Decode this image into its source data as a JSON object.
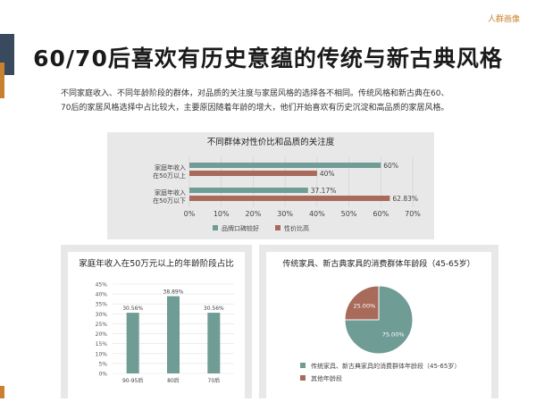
{
  "header": {
    "tag": "人群画像"
  },
  "page": {
    "title": "60/70后喜欢有历史意蕴的传统与新古典风格",
    "intro_line1": "不同家庭收入、不同年龄阶段的群体，对品质的关注度与家居风格的选择各不相同。传统风格和新古典在60、",
    "intro_line2": "70后的家居风格选择中占比较大，主要原因随着年龄的增大，他们开始喜欢有历史沉淀和高品质的家居风格。"
  },
  "colors": {
    "teal": "#6f9c95",
    "brown": "#a86a5a",
    "accent": "#c9812f",
    "dark": "#3a4a5e"
  },
  "chart_data": [
    {
      "type": "bar",
      "orientation": "horizontal",
      "title": "不同群体对性价比和品质的关注度",
      "categories": [
        "家庭年收入在50万以上",
        "家庭年收入在50万以下"
      ],
      "category_lines": [
        [
          "家庭年收入",
          "在50万以上"
        ],
        [
          "家庭年收入",
          "在50万以下"
        ]
      ],
      "series": [
        {
          "name": "品牌口碑较好",
          "values": [
            60,
            37.17
          ],
          "labels": [
            "60%",
            "37.17%"
          ],
          "color": "#6f9c95"
        },
        {
          "name": "性价比高",
          "values": [
            40,
            62.83
          ],
          "labels": [
            "40%",
            "62.83%"
          ],
          "color": "#a86a5a"
        }
      ],
      "xlim": [
        0,
        70
      ],
      "xticks": [
        "0%",
        "10%",
        "20%",
        "30%",
        "40%",
        "50%",
        "60%",
        "70%"
      ],
      "legend": "bottom",
      "grid": true
    },
    {
      "type": "bar",
      "title": "家庭年收入在50万元以上的年龄阶段占比",
      "categories": [
        "90-95后",
        "80后",
        "70后"
      ],
      "values": [
        30.56,
        38.89,
        30.56
      ],
      "labels": [
        "30.56%",
        "38.89%",
        "30.56%"
      ],
      "ylim": [
        0,
        45
      ],
      "yticks": [
        "0%",
        "5%",
        "10%",
        "15%",
        "20%",
        "25%",
        "30%",
        "35%",
        "40%",
        "45%"
      ],
      "color": "#6f9c95",
      "grid": true
    },
    {
      "type": "pie",
      "title": "传统家具、新古典家具的消费群体年龄段（45-65岁）",
      "slices": [
        {
          "name": "传统家具、新古典家具的消费群体年龄段（45-65岁）",
          "value": 75,
          "label": "75.00%",
          "color": "#6f9c95"
        },
        {
          "name": "其他年龄段",
          "value": 25,
          "label": "25.00%",
          "color": "#a86a5a"
        }
      ],
      "legend": "bottom"
    }
  ]
}
